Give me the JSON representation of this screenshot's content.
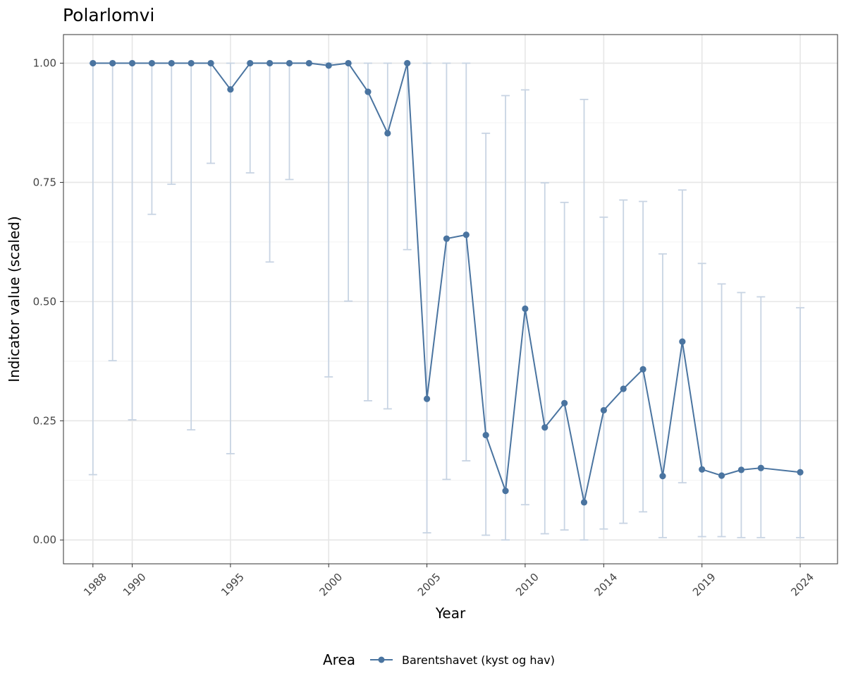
{
  "chart_data": {
    "type": "line",
    "title": "Polarlomvi",
    "xlabel": "Year",
    "ylabel": "Indicator value (scaled)",
    "xlim": [
      1986.5,
      2025.9
    ],
    "ylim": [
      -0.05,
      1.06
    ],
    "x_ticks": [
      1988,
      1990,
      1995,
      2000,
      2005,
      2010,
      2014,
      2019,
      2024
    ],
    "x_tick_labels": [
      "1988",
      "1990",
      "1995",
      "2000",
      "2005",
      "2010",
      "2014",
      "2019",
      "2024"
    ],
    "y_ticks": [
      0.0,
      0.25,
      0.5,
      0.75,
      1.0
    ],
    "y_tick_labels": [
      "0.00",
      "0.25",
      "0.50",
      "0.75",
      "1.00"
    ],
    "grid": true,
    "legend": {
      "title": "Area",
      "position": "bottom"
    },
    "series": [
      {
        "name": "Barentshavet (kyst og hav)",
        "color": "#4a74a0",
        "errorbar_color": "#c8d4e3",
        "x": [
          1988,
          1989,
          1990,
          1991,
          1992,
          1993,
          1994,
          1995,
          1996,
          1997,
          1998,
          1999,
          2000,
          2001,
          2002,
          2003,
          2004,
          2005,
          2006,
          2007,
          2008,
          2009,
          2010,
          2011,
          2012,
          2013,
          2014,
          2015,
          2016,
          2017,
          2018,
          2019,
          2020,
          2021,
          2022,
          2024
        ],
        "y": [
          1.0,
          1.0,
          1.0,
          1.0,
          1.0,
          1.0,
          1.0,
          0.945,
          1.0,
          1.0,
          1.0,
          1.0,
          0.995,
          1.0,
          0.94,
          0.853,
          1.0,
          0.296,
          0.632,
          0.64,
          0.22,
          0.103,
          0.485,
          0.236,
          0.287,
          0.079,
          0.272,
          0.317,
          0.358,
          0.134,
          0.416,
          0.148,
          0.135,
          0.147,
          0.151,
          0.142
        ],
        "lower": [
          0.137,
          0.376,
          0.252,
          0.683,
          0.746,
          0.231,
          0.79,
          0.181,
          0.77,
          0.583,
          0.756,
          1.0,
          0.342,
          0.501,
          0.292,
          0.275,
          0.609,
          0.015,
          0.127,
          0.166,
          0.01,
          0.0,
          0.074,
          0.013,
          0.021,
          0.0,
          0.023,
          0.035,
          0.059,
          0.005,
          0.12,
          0.007,
          0.007,
          0.005,
          0.005,
          0.005
        ],
        "upper": [
          1.0,
          1.0,
          1.0,
          1.0,
          1.0,
          1.0,
          1.0,
          1.0,
          1.0,
          1.0,
          1.0,
          1.0,
          1.0,
          1.0,
          1.0,
          1.0,
          1.0,
          1.0,
          1.0,
          1.0,
          0.853,
          0.932,
          0.944,
          0.749,
          0.708,
          0.924,
          0.677,
          0.713,
          0.71,
          0.6,
          0.734,
          0.58,
          0.537,
          0.519,
          0.51,
          0.487
        ]
      }
    ]
  }
}
